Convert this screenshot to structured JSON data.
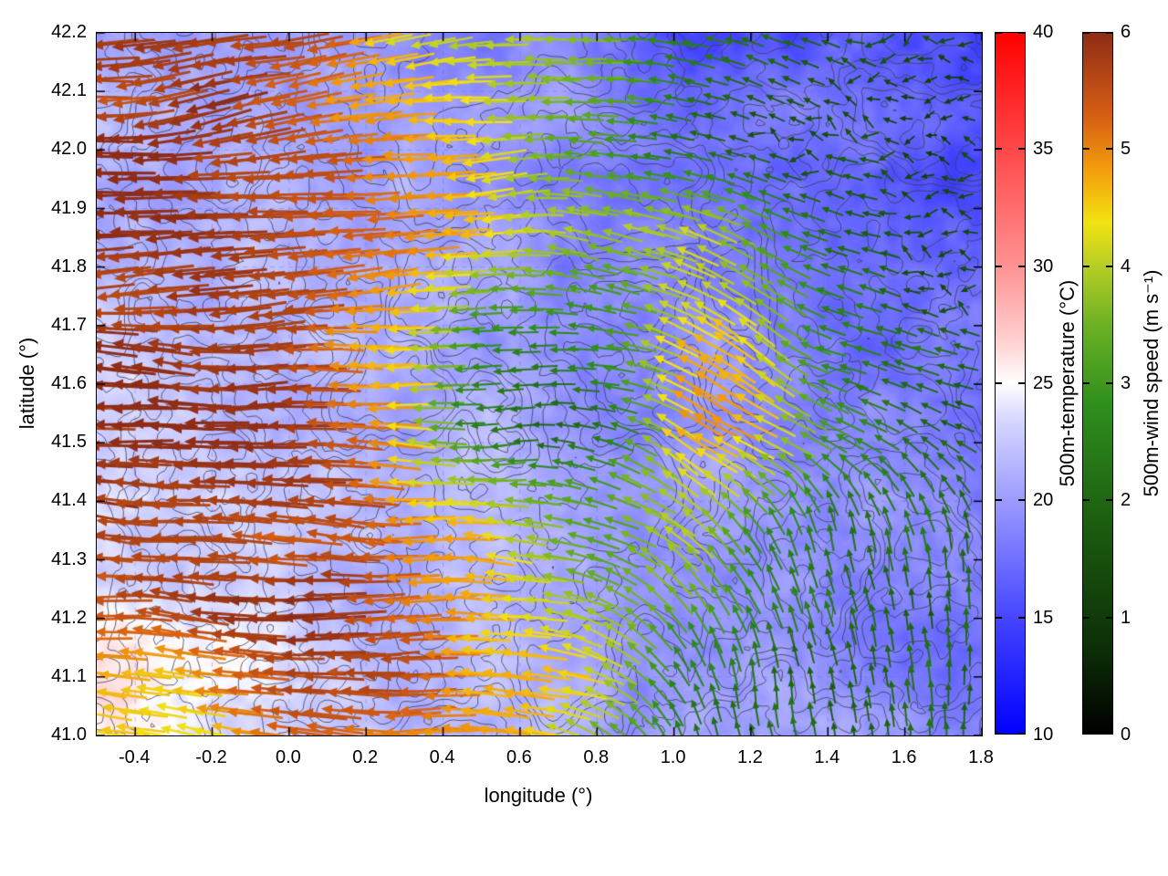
{
  "figure": {
    "xlabel": "longitude (°)",
    "ylabel": "latitude (°)"
  },
  "chart_data": {
    "type": "heatmap",
    "overlay": "quiver",
    "description": "500m temperature field (blue-white-red shading) with topography contours and 500m wind vectors colored by wind speed",
    "x_axis": {
      "label": "longitude (°)",
      "range": [
        -0.5,
        1.8
      ],
      "tick_values": [
        -0.4,
        -0.2,
        0.0,
        0.2,
        0.4,
        0.6,
        0.8,
        1.0,
        1.2,
        1.4,
        1.6,
        1.8
      ],
      "tick_labels": [
        "-0.4",
        "-0.2",
        "0.0",
        "0.2",
        "0.4",
        "0.6",
        "0.8",
        "1.0",
        "1.2",
        "1.4",
        "1.6",
        "1.8"
      ]
    },
    "y_axis": {
      "label": "latitude (°)",
      "range": [
        41.0,
        42.2
      ],
      "tick_values": [
        41.0,
        41.1,
        41.2,
        41.3,
        41.4,
        41.5,
        41.6,
        41.7,
        41.8,
        41.9,
        42.0,
        42.1,
        42.2
      ],
      "tick_labels": [
        "41.0",
        "41.1",
        "41.2",
        "41.3",
        "41.4",
        "41.5",
        "41.6",
        "41.7",
        "41.8",
        "41.9",
        "42.0",
        "42.1",
        "42.2"
      ]
    },
    "temperature": {
      "label": "500m-temperature (°C)",
      "range": [
        10,
        40
      ],
      "tick_values": [
        10,
        15,
        20,
        25,
        30,
        35,
        40
      ],
      "tick_labels": [
        "10",
        "15",
        "20",
        "25",
        "30",
        "35",
        "40"
      ],
      "colormap": [
        [
          0,
          "#0000ff"
        ],
        [
          0.165,
          "#4545ff"
        ],
        [
          0.33,
          "#9a9aff"
        ],
        [
          0.45,
          "#d8d8ff"
        ],
        [
          0.5,
          "#ffffff"
        ],
        [
          0.56,
          "#ffd0d0"
        ],
        [
          0.67,
          "#ff9090"
        ],
        [
          0.84,
          "#ff4545"
        ],
        [
          1,
          "#ff0000"
        ]
      ],
      "grid_rows_north_to_south": [
        [
          21,
          21,
          20.5,
          20,
          19.5,
          19,
          18.5,
          17,
          15,
          16,
          17,
          15,
          14
        ],
        [
          21.5,
          21,
          21,
          20.5,
          20,
          19.5,
          19,
          18,
          17,
          17.5,
          17,
          16,
          15
        ],
        [
          22,
          21.5,
          21,
          21,
          20.5,
          20,
          19.5,
          19,
          18.5,
          18,
          17.5,
          17,
          16.5
        ],
        [
          22.5,
          22,
          21.5,
          21,
          21,
          20.5,
          20,
          19.5,
          19,
          18.5,
          18,
          17.5,
          17
        ],
        [
          23,
          22.5,
          22,
          21.5,
          21,
          21,
          20.5,
          20,
          19.5,
          19,
          18.5,
          18,
          17.5
        ],
        [
          24,
          23.5,
          23,
          22,
          21.5,
          21,
          21,
          20.5,
          20,
          19.5,
          19,
          18.5,
          18
        ],
        [
          25,
          24.5,
          23.5,
          22.5,
          22,
          21.5,
          21,
          20.5,
          20,
          19.5,
          19,
          18.5,
          18
        ],
        [
          26,
          25.5,
          24,
          23,
          22.5,
          22,
          21.5,
          21,
          20.5,
          20,
          19.5,
          19,
          18.5
        ]
      ]
    },
    "wind": {
      "label": "500m-wind speed (m s⁻¹)",
      "range": [
        0,
        6
      ],
      "tick_values": [
        0,
        1,
        2,
        3,
        4,
        5,
        6
      ],
      "tick_labels": [
        "0",
        "1",
        "2",
        "3",
        "4",
        "5",
        "6"
      ],
      "colormap": [
        [
          0,
          "#000000"
        ],
        [
          0.12,
          "#0c2e07"
        ],
        [
          0.3,
          "#1c5d10"
        ],
        [
          0.47,
          "#2f8f1d"
        ],
        [
          0.58,
          "#6ab024"
        ],
        [
          0.67,
          "#b8cf24"
        ],
        [
          0.73,
          "#f2e212"
        ],
        [
          0.8,
          "#f4a10c"
        ],
        [
          0.88,
          "#d65f14"
        ],
        [
          1,
          "#8e2c16"
        ]
      ],
      "speed_grid_rows_north_to_south": [
        [
          5.8,
          5.8,
          5.6,
          5.2,
          4.6,
          4.2,
          4.0,
          3.5,
          2.5,
          2.0,
          1.5,
          1.2,
          1.0
        ],
        [
          5.9,
          5.9,
          5.7,
          5.4,
          4.8,
          4.3,
          3.8,
          3.0,
          2.2,
          1.8,
          1.5,
          1.3,
          1.1
        ],
        [
          5.9,
          5.9,
          5.8,
          5.6,
          5.0,
          4.5,
          4.2,
          3.6,
          4.3,
          3.0,
          2.0,
          1.6,
          1.4
        ],
        [
          6.0,
          5.9,
          5.8,
          5.6,
          4.6,
          3.2,
          2.4,
          2.8,
          4.6,
          4.2,
          2.6,
          2.0,
          1.8
        ],
        [
          6.0,
          6.0,
          5.9,
          5.7,
          5.0,
          3.0,
          1.8,
          2.2,
          4.8,
          4.4,
          2.8,
          2.2,
          2.0
        ],
        [
          5.9,
          5.9,
          5.8,
          5.6,
          5.2,
          4.6,
          4.0,
          3.4,
          4.2,
          3.0,
          2.4,
          2.2,
          2.0
        ],
        [
          5.5,
          5.2,
          5.6,
          5.7,
          5.5,
          5.0,
          4.5,
          4.0,
          2.6,
          2.2,
          2.1,
          2.0,
          2.0
        ],
        [
          4.5,
          4.2,
          5.0,
          5.5,
          5.4,
          5.2,
          4.8,
          3.5,
          2.4,
          2.2,
          2.0,
          2.0,
          1.9
        ]
      ],
      "direction_deg_grid_rows_north_to_south": [
        [
          183,
          185,
          188,
          190,
          188,
          185,
          182,
          178,
          170,
          160,
          150,
          210,
          170
        ],
        [
          185,
          186,
          188,
          190,
          187,
          184,
          180,
          175,
          168,
          165,
          160,
          185,
          175
        ],
        [
          182,
          184,
          186,
          186,
          184,
          182,
          178,
          170,
          158,
          155,
          160,
          165,
          170
        ],
        [
          180,
          182,
          184,
          184,
          182,
          178,
          175,
          168,
          155,
          150,
          155,
          160,
          165
        ],
        [
          178,
          180,
          182,
          183,
          181,
          178,
          176,
          165,
          152,
          148,
          150,
          155,
          160
        ],
        [
          176,
          178,
          180,
          181,
          180,
          178,
          175,
          160,
          140,
          120,
          110,
          105,
          100
        ],
        [
          174,
          176,
          178,
          180,
          179,
          177,
          174,
          150,
          120,
          105,
          100,
          95,
          92
        ],
        [
          172,
          174,
          176,
          178,
          178,
          176,
          172,
          140,
          110,
          100,
          95,
          92,
          90
        ]
      ]
    },
    "contours": {
      "color": "#3c3f4c",
      "levels": [
        0.32,
        0.4,
        0.46,
        0.52,
        0.58,
        0.66
      ]
    },
    "grid_color": "#6868cc"
  }
}
